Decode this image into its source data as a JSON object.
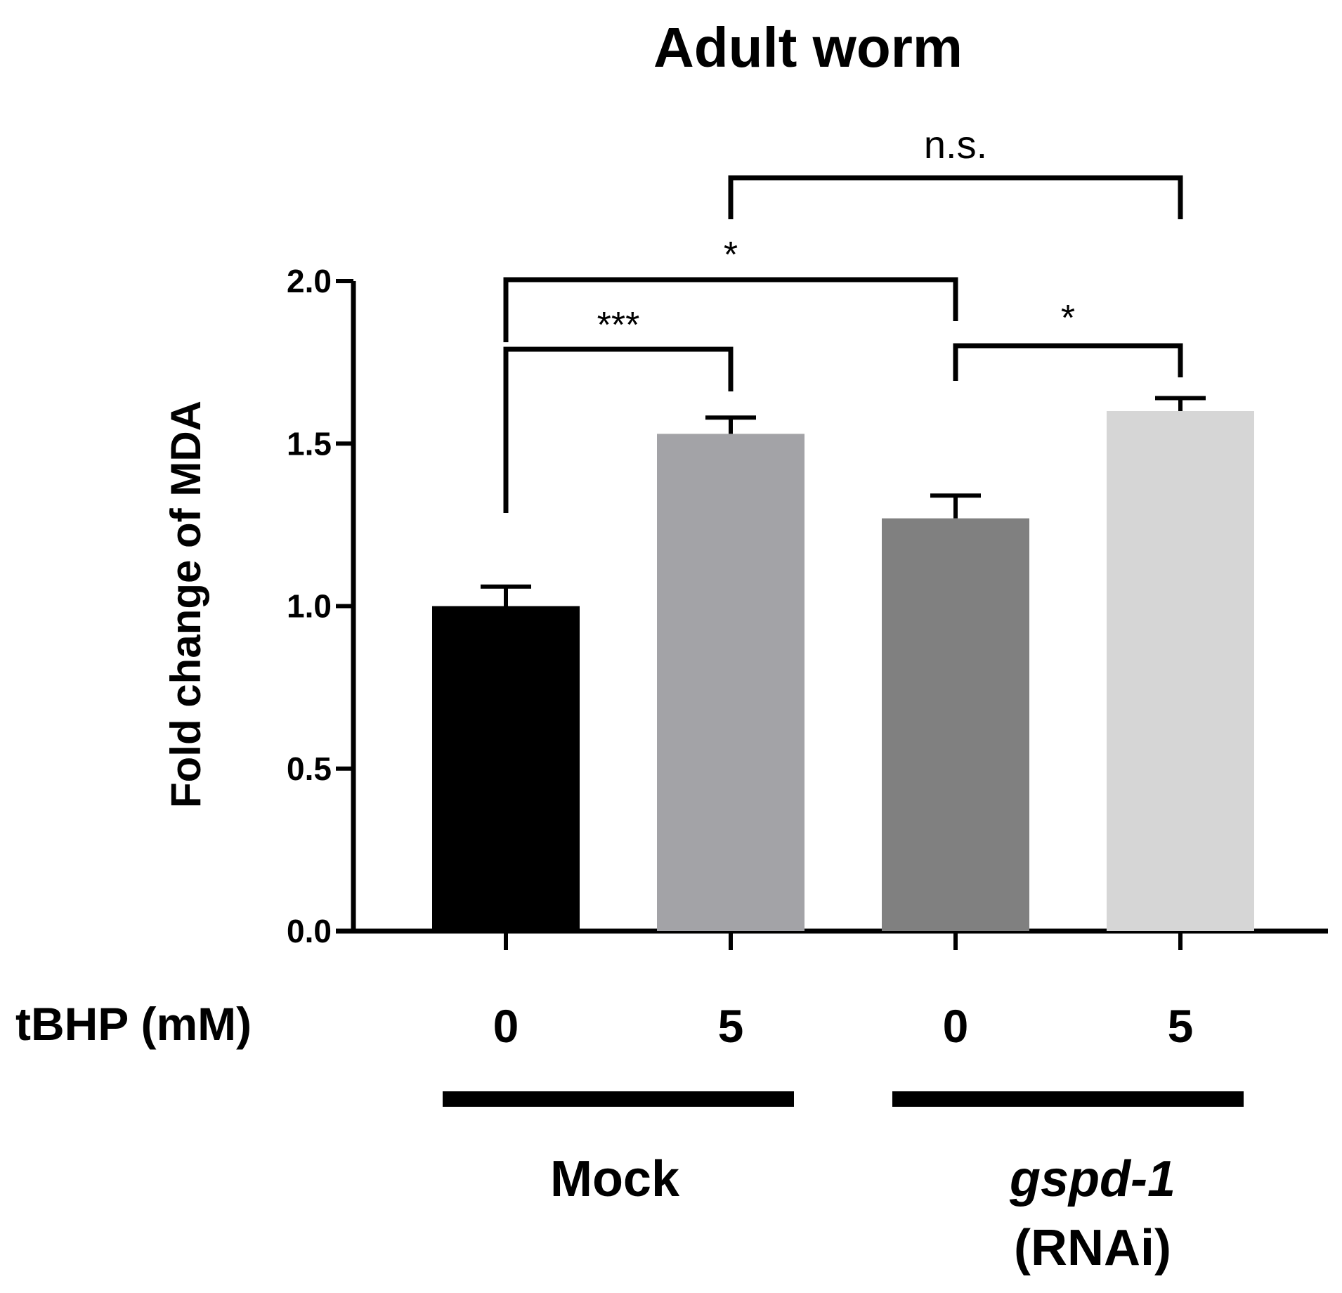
{
  "chart_data": {
    "type": "bar",
    "title": "Adult worm",
    "ylabel": "Fold change of MDA",
    "xlabel": "tBHP (mM)",
    "ylim": [
      0,
      2.0
    ],
    "yticks": [
      "0.0",
      "0.5",
      "1.0",
      "1.5",
      "2.0"
    ],
    "categories": [
      "0",
      "5",
      "0",
      "5"
    ],
    "values": [
      1.0,
      1.53,
      1.27,
      1.6
    ],
    "errors": [
      0.06,
      0.05,
      0.07,
      0.04
    ],
    "colors": [
      "#000000",
      "#a3a3a7",
      "#808080",
      "#d6d6d6"
    ],
    "groups": [
      {
        "label": "Mock",
        "italic": "",
        "suffix": "",
        "bars": [
          0,
          1
        ]
      },
      {
        "label": "",
        "italic": "gspd-1",
        "suffix": "(RNAi)",
        "bars": [
          2,
          3
        ]
      }
    ],
    "significance": [
      {
        "from": 0,
        "to": 1,
        "label": "***"
      },
      {
        "from": 0,
        "to": 2,
        "label": "*"
      },
      {
        "from": 2,
        "to": 3,
        "label": "*"
      },
      {
        "from": 1,
        "to": 3,
        "label": "n.s."
      }
    ]
  }
}
